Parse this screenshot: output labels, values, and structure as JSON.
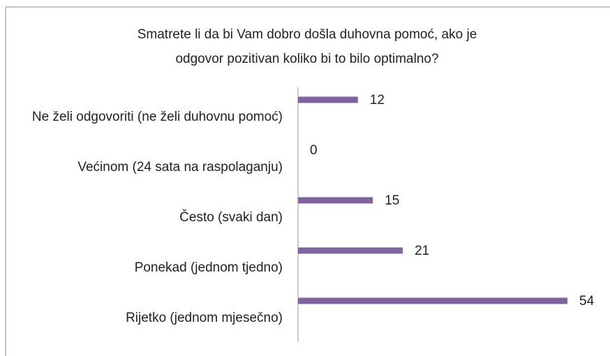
{
  "chart_data": {
    "type": "bar",
    "orientation": "horizontal",
    "title": [
      "Smatrete li da bi Vam dobro došla duhovna pomoć, ako je",
      "odgovor pozitivan koliko bi to bilo optimalno?"
    ],
    "categories": [
      "Ne želi odgovoriti (ne želi duhovnu pomoć)",
      "Većinom (24 sata na raspolaganju)",
      "Često (svaki dan)",
      "Ponekad (jednom tjedno)",
      "Rijetko (jednom mjesečno)"
    ],
    "values": [
      12,
      0,
      15,
      21,
      54
    ],
    "color": "#8064a2"
  }
}
